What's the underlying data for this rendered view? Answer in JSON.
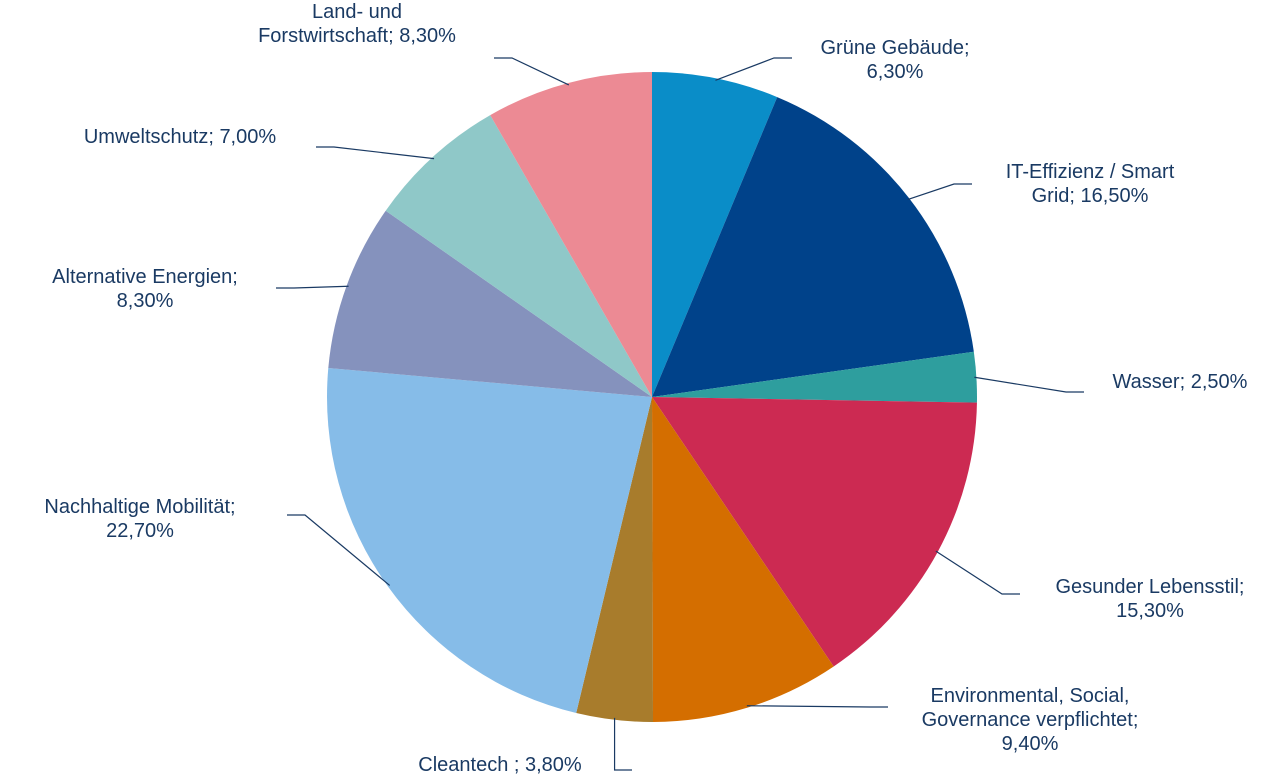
{
  "chart_data": {
    "type": "pie",
    "categories": [
      "Grüne Gebäude;",
      "IT-Effizienz / Smart Grid;",
      "Wasser;",
      "Gesunder Lebensstil;",
      "Environmental, Social, Governance verpflichtet;",
      "Cleantech ;",
      "Nachhaltige Mobilität;",
      "Alternative Energien;",
      "Umweltschutz;",
      "Land- und Forstwirtschaft;"
    ],
    "values": [
      6.3,
      16.5,
      2.5,
      15.3,
      9.4,
      3.8,
      22.7,
      8.3,
      7.0,
      8.3
    ],
    "value_labels": [
      "6,30%",
      "16,50%",
      "2,50%",
      "15,30%",
      "9,40%",
      "3,80%",
      "22,70%",
      "8,30%",
      "7,00%",
      "8,30%"
    ],
    "colors": [
      "#0a8dc8",
      "#00428a",
      "#2e9e9e",
      "#cc2a52",
      "#d46e00",
      "#a87c2c",
      "#86bce8",
      "#8592bd",
      "#8fc8c8",
      "#ec8a94"
    ]
  }
}
